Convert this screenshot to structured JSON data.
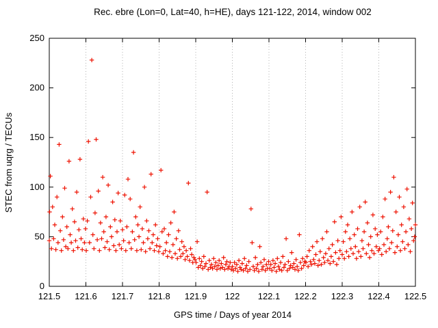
{
  "chart_data": {
    "type": "scatter",
    "title": "Rec. ebre (Lon=0, Lat=40, h=HE), days 121-122, 2014, window 002",
    "xlabel": "GPS time / Days of year 2014",
    "ylabel": "STEC from uqrg / TECUs",
    "xlim": [
      121.5,
      122.5
    ],
    "ylim": [
      0,
      250
    ],
    "xticks": [
      121.5,
      121.6,
      121.7,
      121.8,
      121.9,
      122,
      122.1,
      122.2,
      122.3,
      122.4,
      122.5
    ],
    "xtick_labels": [
      "121.5",
      "121.6",
      "121.7",
      "121.8",
      "121.9",
      "122",
      "122.1",
      "122.2",
      "122.3",
      "122.4",
      "122.5"
    ],
    "yticks": [
      0,
      50,
      100,
      150,
      200,
      250
    ],
    "ytick_labels": [
      "0",
      "50",
      "100",
      "150",
      "200",
      "250"
    ],
    "grid": "vertical-dotted",
    "legend": "none",
    "marker": "plus",
    "marker_color": "#ee1100",
    "border_color": "#000000",
    "grid_color": "#b0b0b0",
    "points": [
      [
        121.5,
        46
      ],
      [
        121.501,
        75
      ],
      [
        121.503,
        111
      ],
      [
        121.506,
        38
      ],
      [
        121.509,
        80
      ],
      [
        121.512,
        48
      ],
      [
        121.515,
        62
      ],
      [
        121.518,
        37
      ],
      [
        121.521,
        90
      ],
      [
        121.524,
        44
      ],
      [
        121.527,
        143
      ],
      [
        121.53,
        56
      ],
      [
        121.533,
        36
      ],
      [
        121.536,
        70
      ],
      [
        121.539,
        47
      ],
      [
        121.542,
        99
      ],
      [
        121.545,
        40
      ],
      [
        121.548,
        60
      ],
      [
        121.551,
        38
      ],
      [
        121.554,
        126
      ],
      [
        121.557,
        52
      ],
      [
        121.56,
        44
      ],
      [
        121.563,
        78
      ],
      [
        121.566,
        36
      ],
      [
        121.569,
        65
      ],
      [
        121.572,
        46
      ],
      [
        121.575,
        95
      ],
      [
        121.578,
        39
      ],
      [
        121.581,
        57
      ],
      [
        121.584,
        128
      ],
      [
        121.587,
        48
      ],
      [
        121.59,
        37
      ],
      [
        121.593,
        68
      ],
      [
        121.596,
        44
      ],
      [
        121.599,
        58
      ],
      [
        121.601,
        36
      ],
      [
        121.604,
        66
      ],
      [
        121.607,
        146
      ],
      [
        121.61,
        44
      ],
      [
        121.613,
        90
      ],
      [
        121.616,
        228
      ],
      [
        121.619,
        52
      ],
      [
        121.622,
        38
      ],
      [
        121.625,
        74
      ],
      [
        121.628,
        148
      ],
      [
        121.631,
        47
      ],
      [
        121.634,
        96
      ],
      [
        121.637,
        36
      ],
      [
        121.64,
        64
      ],
      [
        121.643,
        48
      ],
      [
        121.646,
        110
      ],
      [
        121.649,
        55
      ],
      [
        121.652,
        39
      ],
      [
        121.655,
        70
      ],
      [
        121.658,
        45
      ],
      [
        121.661,
        102
      ],
      [
        121.664,
        37
      ],
      [
        121.667,
        60
      ],
      [
        121.67,
        50
      ],
      [
        121.673,
        85
      ],
      [
        121.676,
        41
      ],
      [
        121.679,
        67
      ],
      [
        121.682,
        36
      ],
      [
        121.685,
        55
      ],
      [
        121.688,
        94
      ],
      [
        121.691,
        42
      ],
      [
        121.694,
        66
      ],
      [
        121.697,
        38
      ],
      [
        121.7,
        57
      ],
      [
        121.703,
        46
      ],
      [
        121.706,
        92
      ],
      [
        121.709,
        36
      ],
      [
        121.712,
        60
      ],
      [
        121.715,
        108
      ],
      [
        121.718,
        44
      ],
      [
        121.721,
        88
      ],
      [
        121.724,
        38
      ],
      [
        121.727,
        55
      ],
      [
        121.73,
        135
      ],
      [
        121.733,
        47
      ],
      [
        121.736,
        70
      ],
      [
        121.739,
        36
      ],
      [
        121.742,
        62
      ],
      [
        121.745,
        50
      ],
      [
        121.748,
        80
      ],
      [
        121.751,
        37
      ],
      [
        121.754,
        58
      ],
      [
        121.757,
        44
      ],
      [
        121.76,
        100
      ],
      [
        121.763,
        35
      ],
      [
        121.766,
        66
      ],
      [
        121.769,
        48
      ],
      [
        121.772,
        56
      ],
      [
        121.775,
        38
      ],
      [
        121.778,
        113
      ],
      [
        121.781,
        44
      ],
      [
        121.784,
        52
      ],
      [
        121.787,
        36
      ],
      [
        121.79,
        62
      ],
      [
        121.793,
        41
      ],
      [
        121.796,
        48
      ],
      [
        121.799,
        35
      ],
      [
        121.802,
        40
      ],
      [
        121.805,
        117
      ],
      [
        121.808,
        55
      ],
      [
        121.811,
        33
      ],
      [
        121.814,
        58
      ],
      [
        121.817,
        36
      ],
      [
        121.82,
        44
      ],
      [
        121.823,
        30
      ],
      [
        121.826,
        52
      ],
      [
        121.829,
        35
      ],
      [
        121.832,
        64
      ],
      [
        121.835,
        29
      ],
      [
        121.838,
        42
      ],
      [
        121.841,
        75
      ],
      [
        121.844,
        33
      ],
      [
        121.847,
        48
      ],
      [
        121.85,
        28
      ],
      [
        121.853,
        56
      ],
      [
        121.856,
        37
      ],
      [
        121.859,
        30
      ],
      [
        121.862,
        45
      ],
      [
        121.865,
        33
      ],
      [
        121.868,
        40
      ],
      [
        121.871,
        27
      ],
      [
        121.874,
        36
      ],
      [
        121.877,
        30
      ],
      [
        121.88,
        104
      ],
      [
        121.883,
        26
      ],
      [
        121.886,
        38
      ],
      [
        121.889,
        32
      ],
      [
        121.892,
        24
      ],
      [
        121.895,
        29
      ],
      [
        121.898,
        27
      ],
      [
        121.901,
        24
      ],
      [
        121.904,
        45
      ],
      [
        121.907,
        19
      ],
      [
        121.91,
        28
      ],
      [
        121.913,
        21
      ],
      [
        121.916,
        25
      ],
      [
        121.919,
        18
      ],
      [
        121.922,
        30
      ],
      [
        121.925,
        20
      ],
      [
        121.928,
        23
      ],
      [
        121.931,
        95
      ],
      [
        121.934,
        17
      ],
      [
        121.937,
        26
      ],
      [
        121.94,
        19
      ],
      [
        121.943,
        22
      ],
      [
        121.946,
        18
      ],
      [
        121.949,
        28
      ],
      [
        121.952,
        20
      ],
      [
        121.955,
        24
      ],
      [
        121.958,
        17
      ],
      [
        121.961,
        21
      ],
      [
        121.964,
        26
      ],
      [
        121.967,
        18
      ],
      [
        121.97,
        23
      ],
      [
        121.973,
        19
      ],
      [
        121.976,
        29
      ],
      [
        121.979,
        17
      ],
      [
        121.982,
        22
      ],
      [
        121.985,
        25
      ],
      [
        121.988,
        18
      ],
      [
        121.991,
        20
      ],
      [
        121.994,
        24
      ],
      [
        121.997,
        17
      ],
      [
        122.0,
        20
      ],
      [
        122.003,
        16
      ],
      [
        122.006,
        24
      ],
      [
        122.009,
        18
      ],
      [
        122.012,
        22
      ],
      [
        122.015,
        15
      ],
      [
        122.018,
        26
      ],
      [
        122.021,
        19
      ],
      [
        122.024,
        17
      ],
      [
        122.027,
        23
      ],
      [
        122.03,
        16
      ],
      [
        122.033,
        28
      ],
      [
        122.036,
        18
      ],
      [
        122.039,
        21
      ],
      [
        122.042,
        15
      ],
      [
        122.045,
        25
      ],
      [
        122.048,
        17
      ],
      [
        122.051,
        78
      ],
      [
        122.054,
        44
      ],
      [
        122.057,
        20
      ],
      [
        122.06,
        16
      ],
      [
        122.063,
        29
      ],
      [
        122.066,
        18
      ],
      [
        122.069,
        22
      ],
      [
        122.072,
        15
      ],
      [
        122.075,
        40
      ],
      [
        122.078,
        24
      ],
      [
        122.081,
        17
      ],
      [
        122.084,
        20
      ],
      [
        122.087,
        27
      ],
      [
        122.09,
        16
      ],
      [
        122.093,
        22
      ],
      [
        122.096,
        18
      ],
      [
        122.099,
        25
      ],
      [
        122.102,
        18
      ],
      [
        122.105,
        22
      ],
      [
        122.108,
        16
      ],
      [
        122.111,
        26
      ],
      [
        122.114,
        19
      ],
      [
        122.117,
        23
      ],
      [
        122.12,
        15
      ],
      [
        122.123,
        28
      ],
      [
        122.126,
        20
      ],
      [
        122.129,
        17
      ],
      [
        122.132,
        24
      ],
      [
        122.135,
        16
      ],
      [
        122.138,
        30
      ],
      [
        122.141,
        19
      ],
      [
        122.144,
        22
      ],
      [
        122.147,
        48
      ],
      [
        122.15,
        16
      ],
      [
        122.153,
        25
      ],
      [
        122.156,
        18
      ],
      [
        122.159,
        21
      ],
      [
        122.162,
        34
      ],
      [
        122.165,
        19
      ],
      [
        122.168,
        23
      ],
      [
        122.171,
        17
      ],
      [
        122.174,
        27
      ],
      [
        122.177,
        20
      ],
      [
        122.18,
        16
      ],
      [
        122.183,
        52
      ],
      [
        122.186,
        24
      ],
      [
        122.189,
        18
      ],
      [
        122.192,
        28
      ],
      [
        122.195,
        21
      ],
      [
        122.198,
        25
      ],
      [
        122.201,
        24
      ],
      [
        122.204,
        30
      ],
      [
        122.207,
        20
      ],
      [
        122.21,
        36
      ],
      [
        122.213,
        25
      ],
      [
        122.216,
        22
      ],
      [
        122.219,
        40
      ],
      [
        122.222,
        27
      ],
      [
        122.225,
        23
      ],
      [
        122.228,
        32
      ],
      [
        122.231,
        45
      ],
      [
        122.234,
        21
      ],
      [
        122.237,
        26
      ],
      [
        122.24,
        35
      ],
      [
        122.243,
        22
      ],
      [
        122.246,
        48
      ],
      [
        122.249,
        29
      ],
      [
        122.252,
        24
      ],
      [
        122.255,
        33
      ],
      [
        122.258,
        55
      ],
      [
        122.261,
        26
      ],
      [
        122.264,
        38
      ],
      [
        122.267,
        23
      ],
      [
        122.27,
        30
      ],
      [
        122.273,
        42
      ],
      [
        122.276,
        25
      ],
      [
        122.279,
        65
      ],
      [
        122.282,
        34
      ],
      [
        122.285,
        22
      ],
      [
        122.288,
        46
      ],
      [
        122.291,
        28
      ],
      [
        122.294,
        36
      ],
      [
        122.297,
        70
      ],
      [
        122.3,
        32
      ],
      [
        122.303,
        45
      ],
      [
        122.306,
        28
      ],
      [
        122.309,
        55
      ],
      [
        122.312,
        35
      ],
      [
        122.315,
        62
      ],
      [
        122.318,
        30
      ],
      [
        122.321,
        48
      ],
      [
        122.324,
        38
      ],
      [
        122.327,
        75
      ],
      [
        122.33,
        33
      ],
      [
        122.333,
        52
      ],
      [
        122.336,
        40
      ],
      [
        122.339,
        28
      ],
      [
        122.342,
        58
      ],
      [
        122.345,
        35
      ],
      [
        122.348,
        80
      ],
      [
        122.351,
        30
      ],
      [
        122.354,
        46
      ],
      [
        122.357,
        38
      ],
      [
        122.36,
        55
      ],
      [
        122.363,
        85
      ],
      [
        122.366,
        33
      ],
      [
        122.369,
        64
      ],
      [
        122.372,
        42
      ],
      [
        122.375,
        29
      ],
      [
        122.378,
        50
      ],
      [
        122.381,
        36
      ],
      [
        122.384,
        72
      ],
      [
        122.387,
        33
      ],
      [
        122.39,
        58
      ],
      [
        122.393,
        40
      ],
      [
        122.396,
        52
      ],
      [
        122.399,
        36
      ],
      [
        122.402,
        38
      ],
      [
        122.405,
        55
      ],
      [
        122.408,
        32
      ],
      [
        122.411,
        70
      ],
      [
        122.414,
        42
      ],
      [
        122.417,
        88
      ],
      [
        122.42,
        35
      ],
      [
        122.423,
        48
      ],
      [
        122.426,
        60
      ],
      [
        122.429,
        38
      ],
      [
        122.432,
        95
      ],
      [
        122.435,
        44
      ],
      [
        122.438,
        56
      ],
      [
        122.441,
        110
      ],
      [
        122.444,
        34
      ],
      [
        122.447,
        75
      ],
      [
        122.45,
        40
      ],
      [
        122.453,
        52
      ],
      [
        122.456,
        90
      ],
      [
        122.459,
        36
      ],
      [
        122.462,
        62
      ],
      [
        122.465,
        45
      ],
      [
        122.468,
        80
      ],
      [
        122.471,
        38
      ],
      [
        122.474,
        55
      ],
      [
        122.477,
        98
      ],
      [
        122.48,
        42
      ],
      [
        122.483,
        68
      ],
      [
        122.486,
        35
      ],
      [
        122.489,
        58
      ],
      [
        122.492,
        84
      ],
      [
        122.495,
        46
      ],
      [
        122.498,
        50
      ],
      [
        122.5,
        62
      ]
    ]
  }
}
